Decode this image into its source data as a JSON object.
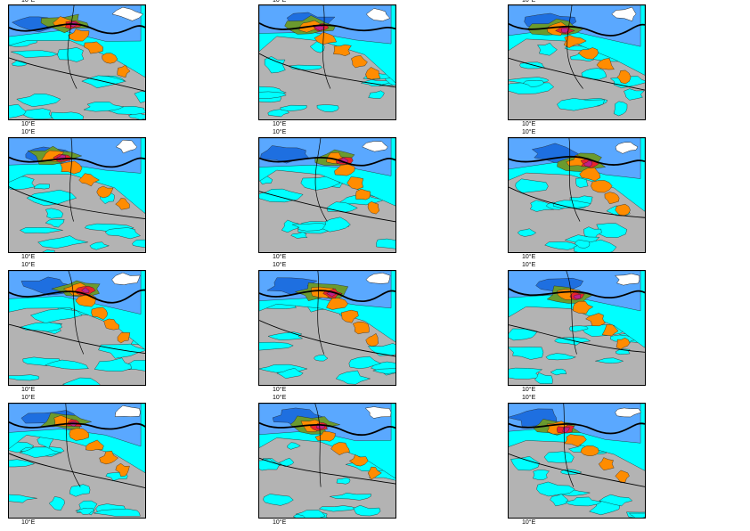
{
  "axis_label": "10°E",
  "colors": {
    "land_gray": "#b3b3b3",
    "cyan": "#00ffff",
    "light_blue": "#5aa8ff",
    "blue": "#1e6fe0",
    "green": "#6b9a2e",
    "orange": "#ff8c00",
    "red": "#e8232d",
    "magenta": "#c0208a",
    "white": "#ffffff",
    "border": "#000000"
  },
  "panels": [
    {
      "id": 1
    },
    {
      "id": 2
    },
    {
      "id": 3
    },
    {
      "id": 4
    },
    {
      "id": 5
    },
    {
      "id": 6
    },
    {
      "id": 7
    },
    {
      "id": 8
    },
    {
      "id": 9
    },
    {
      "id": 10
    },
    {
      "id": 11
    },
    {
      "id": 12
    }
  ]
}
